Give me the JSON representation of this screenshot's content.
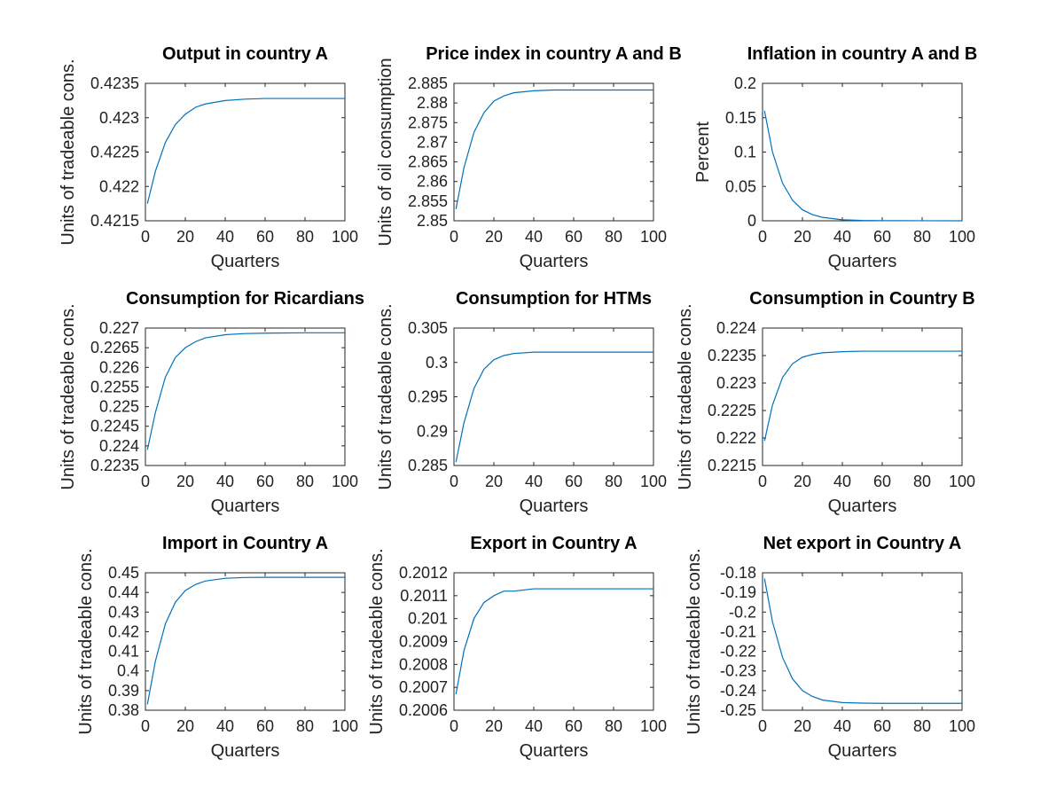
{
  "figure": {
    "background": "#ffffff",
    "line_color": "#0072bd"
  },
  "chart_data": [
    {
      "type": "line",
      "title": "Output in country A",
      "xlabel": "Quarters",
      "ylabel": "Units of tradeable cons.",
      "xlim": [
        0,
        100
      ],
      "ylim": [
        0.4215,
        0.4235
      ],
      "xticks": [
        0,
        20,
        40,
        60,
        80,
        100
      ],
      "xtick_labels": [
        "0",
        "20",
        "40",
        "60",
        "80",
        "100"
      ],
      "yticks": [
        0.4215,
        0.422,
        0.4225,
        0.423,
        0.4235
      ],
      "ytick_labels": [
        "0.4215",
        "0.422",
        "0.4225",
        "0.423",
        "0.4235"
      ],
      "grid": false,
      "series": [
        {
          "x": [
            1,
            5,
            10,
            15,
            20,
            25,
            30,
            40,
            50,
            60,
            80,
            100
          ],
          "y": [
            0.42175,
            0.42222,
            0.42264,
            0.4229,
            0.42305,
            0.42315,
            0.4232,
            0.42325,
            0.42327,
            0.42328,
            0.42328,
            0.42328
          ]
        }
      ]
    },
    {
      "type": "line",
      "title": "Price index in country A and B",
      "xlabel": "Quarters",
      "ylabel": "Units of oil consumption",
      "xlim": [
        0,
        100
      ],
      "ylim": [
        2.85,
        2.885
      ],
      "xticks": [
        0,
        20,
        40,
        60,
        80,
        100
      ],
      "xtick_labels": [
        "0",
        "20",
        "40",
        "60",
        "80",
        "100"
      ],
      "yticks": [
        2.85,
        2.855,
        2.86,
        2.865,
        2.87,
        2.875,
        2.88,
        2.885
      ],
      "ytick_labels": [
        "2.85",
        "2.855",
        "2.86",
        "2.865",
        "2.87",
        "2.875",
        "2.88",
        "2.885"
      ],
      "grid": false,
      "series": [
        {
          "x": [
            1,
            5,
            10,
            15,
            20,
            25,
            30,
            40,
            50,
            60,
            80,
            100
          ],
          "y": [
            2.853,
            2.8635,
            2.8725,
            2.8775,
            2.8805,
            2.8818,
            2.8826,
            2.8831,
            2.8833,
            2.8833,
            2.8833,
            2.8833
          ]
        }
      ]
    },
    {
      "type": "line",
      "title": "Inflation in country A and B",
      "xlabel": "Quarters",
      "ylabel": "Percent",
      "xlim": [
        0,
        100
      ],
      "ylim": [
        0,
        0.2
      ],
      "xticks": [
        0,
        20,
        40,
        60,
        80,
        100
      ],
      "xtick_labels": [
        "0",
        "20",
        "40",
        "60",
        "80",
        "100"
      ],
      "yticks": [
        0,
        0.05,
        0.1,
        0.15,
        0.2
      ],
      "ytick_labels": [
        "0",
        "0.05",
        "0.1",
        "0.15",
        "0.2"
      ],
      "grid": false,
      "series": [
        {
          "x": [
            1,
            5,
            10,
            15,
            20,
            25,
            30,
            40,
            50,
            60,
            80,
            100
          ],
          "y": [
            0.16,
            0.1,
            0.055,
            0.03,
            0.016,
            0.009,
            0.005,
            0.0015,
            0.0005,
            0.0002,
            0.0001,
            0.0
          ]
        }
      ]
    },
    {
      "type": "line",
      "title": "Consumption for Ricardians",
      "xlabel": "Quarters",
      "ylabel": "Units of tradeable cons.",
      "xlim": [
        0,
        100
      ],
      "ylim": [
        0.2235,
        0.227
      ],
      "xticks": [
        0,
        20,
        40,
        60,
        80,
        100
      ],
      "xtick_labels": [
        "0",
        "20",
        "40",
        "60",
        "80",
        "100"
      ],
      "yticks": [
        0.2235,
        0.224,
        0.2245,
        0.225,
        0.2255,
        0.226,
        0.2265,
        0.227
      ],
      "ytick_labels": [
        "0.2235",
        "0.224",
        "0.2245",
        "0.225",
        "0.2255",
        "0.226",
        "0.2265",
        "0.227"
      ],
      "grid": false,
      "series": [
        {
          "x": [
            1,
            5,
            10,
            15,
            20,
            25,
            30,
            40,
            50,
            60,
            80,
            100
          ],
          "y": [
            0.2239,
            0.22485,
            0.22575,
            0.22625,
            0.2265,
            0.22665,
            0.22675,
            0.22683,
            0.22686,
            0.22687,
            0.22688,
            0.22688
          ]
        }
      ]
    },
    {
      "type": "line",
      "title": "Consumption for HTMs",
      "xlabel": "Quarters",
      "ylabel": "Units of tradeable cons.",
      "xlim": [
        0,
        100
      ],
      "ylim": [
        0.285,
        0.305
      ],
      "xticks": [
        0,
        20,
        40,
        60,
        80,
        100
      ],
      "xtick_labels": [
        "0",
        "20",
        "40",
        "60",
        "80",
        "100"
      ],
      "yticks": [
        0.285,
        0.29,
        0.295,
        0.3,
        0.305
      ],
      "ytick_labels": [
        "0.285",
        "0.29",
        "0.295",
        "0.3",
        "0.305"
      ],
      "grid": false,
      "series": [
        {
          "x": [
            1,
            5,
            10,
            15,
            20,
            25,
            30,
            40,
            50,
            60,
            80,
            100
          ],
          "y": [
            0.2855,
            0.2912,
            0.2962,
            0.299,
            0.3004,
            0.301,
            0.3013,
            0.3015,
            0.3015,
            0.3015,
            0.3015,
            0.3015
          ]
        }
      ]
    },
    {
      "type": "line",
      "title": "Consumption in Country B",
      "xlabel": "Quarters",
      "ylabel": "Units of tradeable cons.",
      "xlim": [
        0,
        100
      ],
      "ylim": [
        0.2215,
        0.224
      ],
      "xticks": [
        0,
        20,
        40,
        60,
        80,
        100
      ],
      "xtick_labels": [
        "0",
        "20",
        "40",
        "60",
        "80",
        "100"
      ],
      "yticks": [
        0.2215,
        0.222,
        0.2225,
        0.223,
        0.2235,
        0.224
      ],
      "ytick_labels": [
        "0.2215",
        "0.222",
        "0.2225",
        "0.223",
        "0.2235",
        "0.224"
      ],
      "grid": false,
      "series": [
        {
          "x": [
            1,
            5,
            10,
            15,
            20,
            25,
            30,
            40,
            50,
            60,
            80,
            100
          ],
          "y": [
            0.22195,
            0.2226,
            0.2231,
            0.22335,
            0.22347,
            0.22352,
            0.22355,
            0.22357,
            0.22358,
            0.22358,
            0.22358,
            0.22358
          ]
        }
      ]
    },
    {
      "type": "line",
      "title": "Import in Country A",
      "xlabel": "Quarters",
      "ylabel": "Units of tradeable cons.",
      "xlim": [
        0,
        100
      ],
      "ylim": [
        0.38,
        0.45
      ],
      "xticks": [
        0,
        20,
        40,
        60,
        80,
        100
      ],
      "xtick_labels": [
        "0",
        "20",
        "40",
        "60",
        "80",
        "100"
      ],
      "yticks": [
        0.38,
        0.39,
        0.4,
        0.41,
        0.42,
        0.43,
        0.44,
        0.45
      ],
      "ytick_labels": [
        "0.38",
        "0.39",
        "0.4",
        "0.41",
        "0.42",
        "0.43",
        "0.44",
        "0.45"
      ],
      "grid": false,
      "series": [
        {
          "x": [
            1,
            5,
            10,
            15,
            20,
            25,
            30,
            40,
            50,
            60,
            80,
            100
          ],
          "y": [
            0.383,
            0.405,
            0.424,
            0.435,
            0.441,
            0.444,
            0.4458,
            0.4472,
            0.4476,
            0.4477,
            0.4477,
            0.4477
          ]
        }
      ]
    },
    {
      "type": "line",
      "title": "Export in Country A",
      "xlabel": "Quarters",
      "ylabel": "Units of tradeable cons.",
      "xlim": [
        0,
        100
      ],
      "ylim": [
        0.2006,
        0.2012
      ],
      "xticks": [
        0,
        20,
        40,
        60,
        80,
        100
      ],
      "xtick_labels": [
        "0",
        "20",
        "40",
        "60",
        "80",
        "100"
      ],
      "yticks": [
        0.2006,
        0.2007,
        0.2008,
        0.2009,
        0.201,
        0.2011,
        0.2012
      ],
      "ytick_labels": [
        "0.2006",
        "0.2007",
        "0.2008",
        "0.2009",
        "0.201",
        "0.2011",
        "0.2012"
      ],
      "grid": false,
      "series": [
        {
          "x": [
            1,
            5,
            10,
            15,
            20,
            25,
            30,
            40,
            50,
            60,
            80,
            100
          ],
          "y": [
            0.20067,
            0.20086,
            0.201,
            0.20107,
            0.2011,
            0.20112,
            0.20112,
            0.20113,
            0.20113,
            0.20113,
            0.20113,
            0.20113
          ]
        }
      ]
    },
    {
      "type": "line",
      "title": "Net export in Country A",
      "xlabel": "Quarters",
      "ylabel": "Units of tradeable cons.",
      "xlim": [
        0,
        100
      ],
      "ylim": [
        -0.25,
        -0.18
      ],
      "xticks": [
        0,
        20,
        40,
        60,
        80,
        100
      ],
      "xtick_labels": [
        "0",
        "20",
        "40",
        "60",
        "80",
        "100"
      ],
      "yticks": [
        -0.25,
        -0.24,
        -0.23,
        -0.22,
        -0.21,
        -0.2,
        -0.19,
        -0.18
      ],
      "ytick_labels": [
        "-0.25",
        "-0.24",
        "-0.23",
        "-0.22",
        "-0.21",
        "-0.2",
        "-0.19",
        "-0.18"
      ],
      "grid": false,
      "series": [
        {
          "x": [
            1,
            5,
            10,
            15,
            20,
            25,
            30,
            40,
            50,
            60,
            80,
            100
          ],
          "y": [
            -0.183,
            -0.205,
            -0.223,
            -0.234,
            -0.24,
            -0.243,
            -0.2448,
            -0.2461,
            -0.2464,
            -0.2465,
            -0.2465,
            -0.2465
          ]
        }
      ]
    }
  ]
}
